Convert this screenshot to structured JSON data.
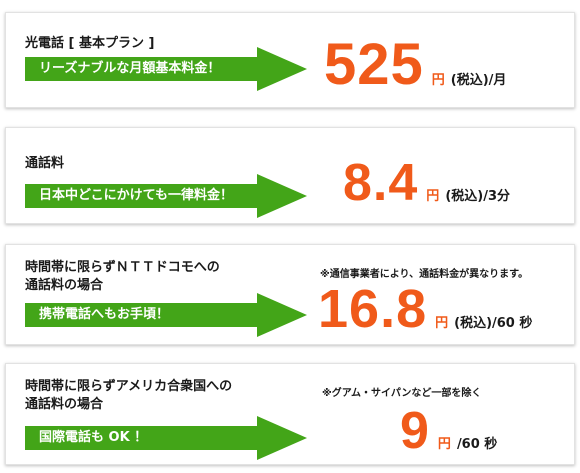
{
  "plans": [
    {
      "title": "光電話 [ 基本プラン ]",
      "banner": "リーズナブルな月額基本料金！",
      "price": "525",
      "currency": "円",
      "unit": "(税込)/月",
      "note": ""
    },
    {
      "title": "通話料",
      "banner": "日本中どこにかけても一律料金！",
      "price": "8.4",
      "currency": "円",
      "unit": "(税込)/3分",
      "note": ""
    },
    {
      "title": "時間帯に限らずＮＴＴドコモへの\n通話料の場合",
      "banner": "携帯電話へもお手頃！",
      "price": "16.8",
      "currency": "円",
      "unit": "(税込)/60 秒",
      "note": "※通信事業者により、通話料金が異なります。"
    },
    {
      "title": "時間帯に限らずアメリカ合衆国への\n通話料の場合",
      "banner": "国際電話も OK ！",
      "price": "9",
      "currency": "円",
      "unit": "/60 秒",
      "note": "※グアム・サイパンなど一部を除く"
    }
  ],
  "colors": {
    "banner_green": "#43a518",
    "price_orange": "#f05a1a",
    "text_dark": "#1a1a1a"
  }
}
